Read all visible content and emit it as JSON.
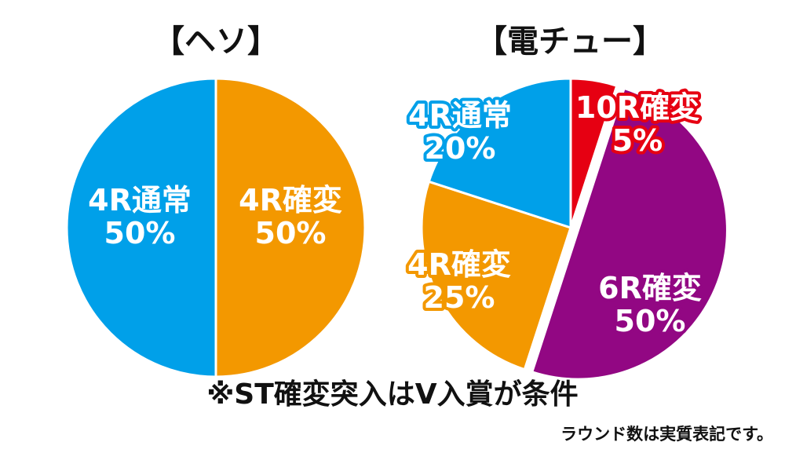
{
  "chart_data": [
    {
      "type": "pie",
      "title": "【ヘソ】",
      "slices": [
        {
          "label": "4R確変",
          "value": 50,
          "value_label": "50%",
          "color": "#f39800"
        },
        {
          "label": "4R通常",
          "value": 50,
          "value_label": "50%",
          "color": "#00a0e9"
        }
      ]
    },
    {
      "type": "pie",
      "title": "【電チュー】",
      "slices": [
        {
          "label": "10R確変",
          "value": 5,
          "value_label": "5%",
          "color": "#e60012"
        },
        {
          "label": "6R確変",
          "value": 50,
          "value_label": "50%",
          "color": "#920783"
        },
        {
          "label": "4R確変",
          "value": 25,
          "value_label": "25%",
          "color": "#f39800"
        },
        {
          "label": "4R通常",
          "value": 20,
          "value_label": "20%",
          "color": "#00a0e9"
        }
      ]
    }
  ],
  "notes": {
    "main": "※ST確変突入はV入賞が条件",
    "sub": "ラウンド数は実質表記です。"
  }
}
